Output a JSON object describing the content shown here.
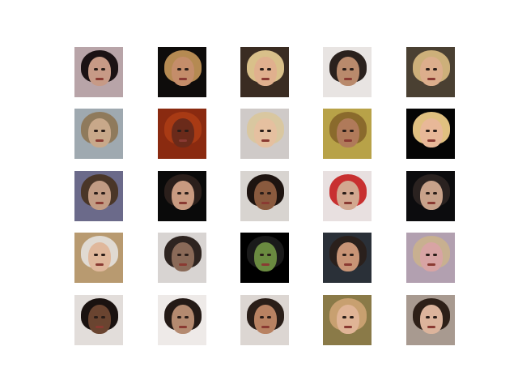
{
  "figure": {
    "rows": 5,
    "cols": 5,
    "tiles": [
      {
        "bg": "#b8a4a8",
        "hair": "#1b1214",
        "face": "#c79a86"
      },
      {
        "bg": "#0e0c0b",
        "hair": "#b58a52",
        "face": "#c48d6a"
      },
      {
        "bg": "#3a2c22",
        "hair": "#d9c08a",
        "face": "#e0b08e"
      },
      {
        "bg": "#e8e4e2",
        "hair": "#2a211d",
        "face": "#b98a6c"
      },
      {
        "bg": "#4a4032",
        "hair": "#cdb07a",
        "face": "#dcae8c"
      },
      {
        "bg": "#9fa9b0",
        "hair": "#8f7a5c",
        "face": "#c8a88a"
      },
      {
        "bg": "#8a2a10",
        "hair": "#a83a14",
        "face": "#6a2a1a"
      },
      {
        "bg": "#cfcac8",
        "hair": "#d9c7a0",
        "face": "#e5c0a0"
      },
      {
        "bg": "#b8a248",
        "hair": "#8a6a2c",
        "face": "#b07a5a"
      },
      {
        "bg": "#050505",
        "hair": "#e0c080",
        "face": "#e8b898"
      },
      {
        "bg": "#6b6a8a",
        "hair": "#4a3628",
        "face": "#c29c84"
      },
      {
        "bg": "#0a0a0a",
        "hair": "#2b1f1b",
        "face": "#c89a80"
      },
      {
        "bg": "#d8d4d0",
        "hair": "#1e1410",
        "face": "#8a5a3e"
      },
      {
        "bg": "#e8e0e0",
        "hair": "#c83030",
        "face": "#d2a890"
      },
      {
        "bg": "#0c0c0e",
        "hair": "#2a2220",
        "face": "#c8a28a"
      },
      {
        "bg": "#b89a70",
        "hair": "#e0dad2",
        "face": "#e0b89c"
      },
      {
        "bg": "#d8d4d2",
        "hair": "#2e2420",
        "face": "#8a6a58"
      },
      {
        "bg": "#000000",
        "hair": "#1a1a1a",
        "face": "#6a8a40"
      },
      {
        "bg": "#2a3038",
        "hair": "#2a201c",
        "face": "#c89476"
      },
      {
        "bg": "#b2a0b0",
        "hair": "#c8b090",
        "face": "#d8a4a4"
      },
      {
        "bg": "#e2ddda",
        "hair": "#1a1210",
        "face": "#6a4430"
      },
      {
        "bg": "#eeeae8",
        "hair": "#241a16",
        "face": "#b48a70"
      },
      {
        "bg": "#dcd6d2",
        "hair": "#2a1e18",
        "face": "#b88262"
      },
      {
        "bg": "#8a7a48",
        "hair": "#c8a070",
        "face": "#e0b496"
      },
      {
        "bg": "#a89a90",
        "hair": "#2e2018",
        "face": "#dcb49c"
      }
    ]
  }
}
